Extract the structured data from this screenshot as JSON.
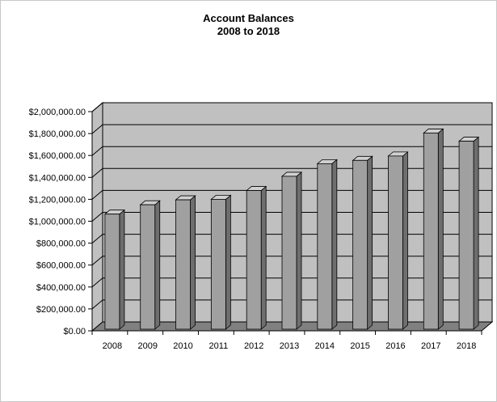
{
  "chart_data": {
    "type": "bar",
    "title": "Account Balances",
    "subtitle": "2008 to 2018",
    "style": "3d-column",
    "categories": [
      "2008",
      "2009",
      "2010",
      "2011",
      "2012",
      "2013",
      "2014",
      "2015",
      "2016",
      "2017",
      "2018"
    ],
    "values": [
      1065000,
      1150000,
      1195000,
      1200000,
      1280000,
      1410000,
      1525000,
      1555000,
      1595000,
      1805000,
      1730000
    ],
    "ylim": [
      0,
      2000000
    ],
    "ytick_step": 200000,
    "ytick_labels": [
      "$0.00",
      "$200,000.00",
      "$400,000.00",
      "$600,000.00",
      "$800,000.00",
      "$1,000,000.00",
      "$1,200,000.00",
      "$1,400,000.00",
      "$1,600,000.00",
      "$1,800,000.00",
      "$2,000,000.00"
    ],
    "xlabel": "",
    "ylabel": "",
    "grid": true,
    "legend": false,
    "colors": {
      "wall": "#c0c0c0",
      "floor": "#808080",
      "bar_front": "#a0a0a0",
      "bar_side": "#6e6e6e",
      "bar_top": "#d0d0d0",
      "gridline": "#000000"
    }
  }
}
